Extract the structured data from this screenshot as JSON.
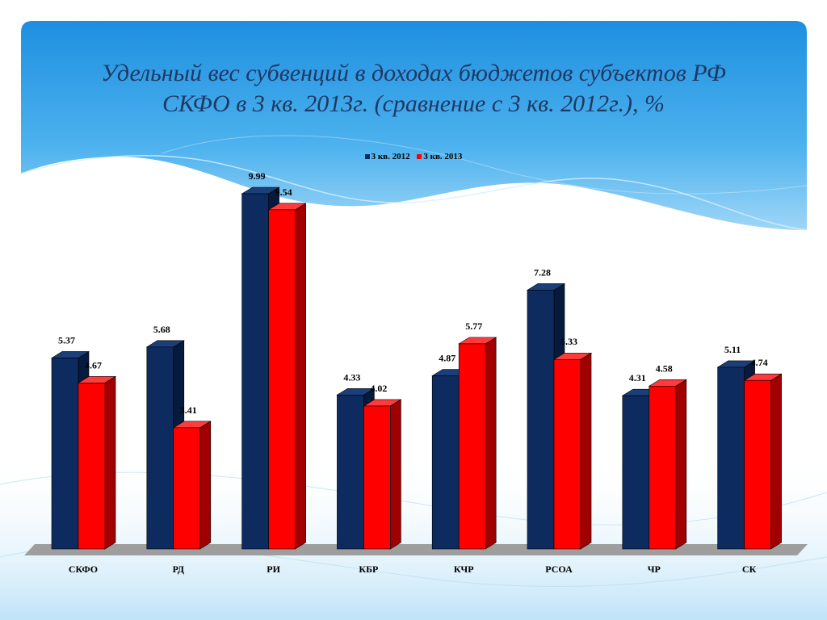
{
  "slide": {
    "title_line1": "Удельный вес субвенций в доходах бюджетов субъектов РФ",
    "title_line2": "СКФО в 3 кв. 2013г. (сравнение с 3 кв. 2012г.), %"
  },
  "colors": {
    "series_2012": "#0d2b5e",
    "series_2012_side": "#061a3e",
    "series_2013": "#ff0000",
    "series_2013_side": "#a00000",
    "floor": "#9e9e9e",
    "title": "#1f3864"
  },
  "chart_data": {
    "type": "bar",
    "title": "",
    "xlabel": "",
    "ylabel": "",
    "ylim": [
      0,
      10
    ],
    "grid": false,
    "legend": "top-center",
    "categories": [
      "СКФО",
      "РД",
      "РИ",
      "КБР",
      "КЧР",
      "РСОА",
      "ЧР",
      "СК"
    ],
    "series": [
      {
        "name": "3 кв. 2012",
        "values": [
          5.37,
          5.68,
          9.99,
          4.33,
          4.87,
          7.28,
          4.31,
          5.11
        ]
      },
      {
        "name": "3 кв. 2013",
        "values": [
          4.67,
          3.41,
          9.54,
          4.02,
          5.77,
          5.33,
          4.58,
          4.74
        ]
      }
    ]
  }
}
